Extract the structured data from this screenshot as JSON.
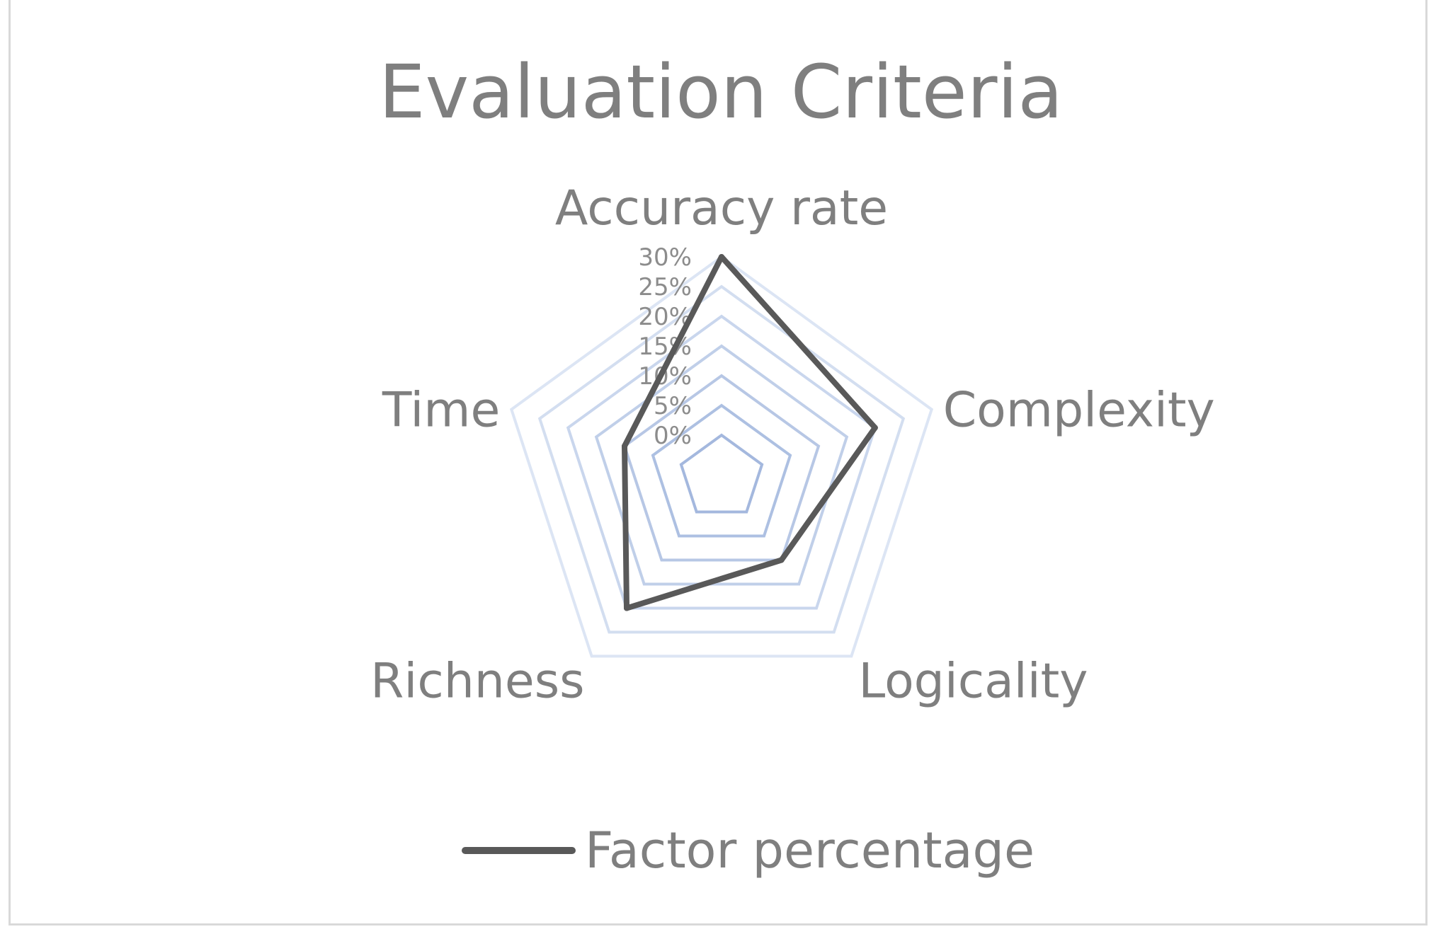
{
  "chart_data": {
    "type": "radar",
    "title": "Evaluation Criteria",
    "categories": [
      "Accuracy rate",
      "Complexity",
      "Logicality",
      "Richness",
      "Time"
    ],
    "series": [
      {
        "name": "Factor percentage",
        "values": [
          30,
          20,
          10,
          20,
          10
        ],
        "color": "#595959"
      }
    ],
    "rlim": [
      0,
      30
    ],
    "ticks": [
      0,
      5,
      10,
      15,
      20,
      25,
      30
    ],
    "tick_labels": [
      "0%",
      "5%",
      "10%",
      "15%",
      "20%",
      "25%",
      "30%"
    ],
    "grid": true,
    "grid_color_inner": "#a4b8de",
    "grid_color_outer": "#dce5f4",
    "legend_position": "bottom"
  }
}
